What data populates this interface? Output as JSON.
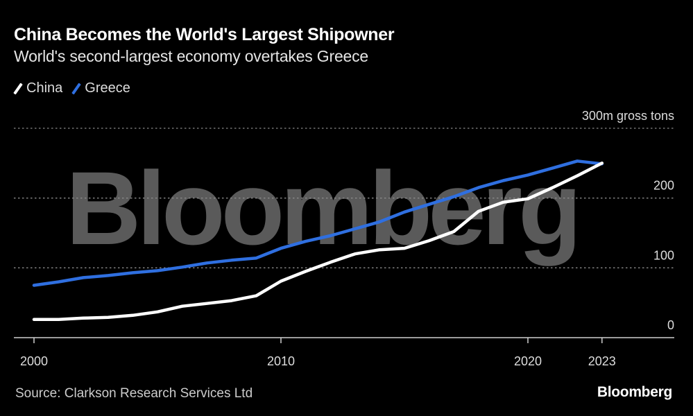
{
  "header": {
    "title": "China Becomes the World's Largest Shipowner",
    "subtitle": "World's second-largest economy overtakes Greece"
  },
  "legend": [
    {
      "label": "China",
      "color": "#ffffff"
    },
    {
      "label": "Greece",
      "color": "#2f6fe0"
    }
  ],
  "footer": {
    "source": "Source: Clarkson Research Services Ltd",
    "brand": "Bloomberg"
  },
  "watermark": "Bloomberg",
  "chart_data": {
    "type": "line",
    "title": "China Becomes the World's Largest Shipowner",
    "subtitle": "World's second-largest economy overtakes Greece",
    "xlabel": "",
    "ylabel": "300m gross tons",
    "xlim": [
      1999.6,
      2025.1
    ],
    "ylim": [
      0,
      300
    ],
    "x_ticks": [
      2000,
      2010,
      2020,
      2023
    ],
    "x_tick_labels": [
      "2000",
      "2010",
      "2020",
      "2023"
    ],
    "y_ticks": [
      0,
      100,
      200,
      300
    ],
    "y_tick_labels": [
      "0",
      "100",
      "200",
      "300m gross tons"
    ],
    "grid": "horizontal-dotted",
    "legend_position": "top-left",
    "x": [
      2000,
      2001,
      2002,
      2003,
      2004,
      2005,
      2006,
      2007,
      2008,
      2009,
      2010,
      2011,
      2012,
      2013,
      2014,
      2015,
      2016,
      2017,
      2018,
      2019,
      2020,
      2021,
      2022,
      2023
    ],
    "series": [
      {
        "name": "China",
        "color": "#ffffff",
        "values": [
          26,
          26,
          28,
          29,
          32,
          37,
          45,
          49,
          53,
          60,
          81,
          95,
          108,
          120,
          126,
          128,
          139,
          152,
          181,
          194,
          199,
          215,
          232,
          250
        ]
      },
      {
        "name": "Greece",
        "color": "#2f6fe0",
        "values": [
          75,
          80,
          86,
          89,
          93,
          96,
          101,
          107,
          111,
          114,
          128,
          138,
          146,
          156,
          166,
          180,
          191,
          202,
          215,
          225,
          233,
          243,
          253,
          249
        ]
      }
    ]
  }
}
